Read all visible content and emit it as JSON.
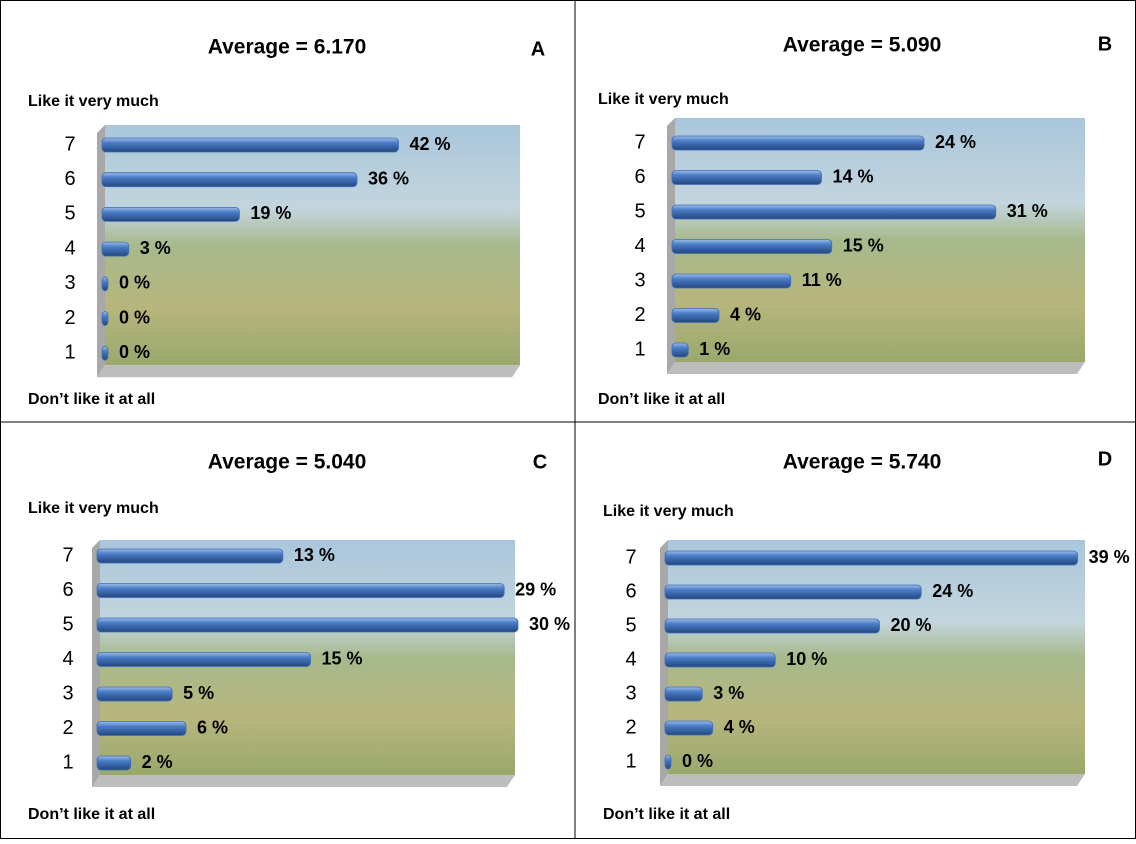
{
  "chart_data": [
    {
      "type": "bar",
      "title": "Average = 6.170",
      "panel": "A",
      "top_label": "Like it very much",
      "bottom_label": "Don’t like it at all",
      "categories": [
        "7",
        "6",
        "5",
        "4",
        "3",
        "2",
        "1"
      ],
      "values": [
        42,
        36,
        19,
        3,
        0,
        0,
        0
      ],
      "value_labels": [
        "42 %",
        "36 %",
        "19 %",
        "3 %",
        "0 %",
        "0 %",
        "0 %"
      ],
      "xlim": [
        0,
        60
      ],
      "color": "#3f6fb8"
    },
    {
      "type": "bar",
      "title": "Average = 5.090",
      "panel": "B",
      "top_label": "Like it very much",
      "bottom_label": "Don’t like it at all",
      "categories": [
        "7",
        "6",
        "5",
        "4",
        "3",
        "2",
        "1"
      ],
      "values": [
        24,
        14,
        31,
        15,
        11,
        4,
        1
      ],
      "value_labels": [
        "24 %",
        "14 %",
        "31 %",
        "15 %",
        "11 %",
        "4 %",
        "1 %"
      ],
      "xlim": [
        0,
        40
      ],
      "color": "#3f6fb8"
    },
    {
      "type": "bar",
      "title": "Average = 5.040",
      "panel": "C",
      "top_label": "Like it very much",
      "bottom_label": "Don’t like it at all",
      "categories": [
        "7",
        "6",
        "5",
        "4",
        "3",
        "2",
        "1"
      ],
      "values": [
        13,
        29,
        30,
        15,
        5,
        6,
        2
      ],
      "value_labels": [
        "13 %",
        "29 %",
        "30 %",
        "15 %",
        "5 %",
        "6 %",
        "2 %"
      ],
      "xlim": [
        0,
        30
      ],
      "color": "#3f6fb8"
    },
    {
      "type": "bar",
      "title": "Average = 5.740",
      "panel": "D",
      "top_label": "Like it very much",
      "bottom_label": "Don’t like it at all",
      "categories": [
        "7",
        "6",
        "5",
        "4",
        "3",
        "2",
        "1"
      ],
      "values": [
        39,
        24,
        20,
        10,
        3,
        4,
        0
      ],
      "value_labels": [
        "39 %",
        "24 %",
        "20 %",
        "10 %",
        "3 %",
        "4 %",
        "0 %"
      ],
      "xlim": [
        0,
        40
      ],
      "color": "#3f6fb8"
    }
  ]
}
